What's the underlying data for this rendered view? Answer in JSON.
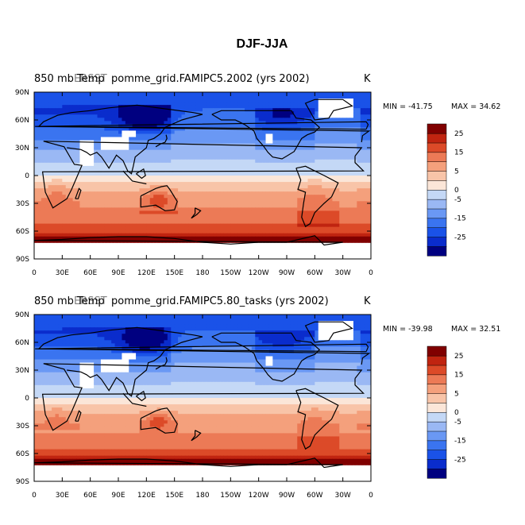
{
  "figure_title": "DJF-JJA",
  "chart_data": [
    {
      "type": "heatmap",
      "title_left": "850 mb Temp",
      "title_left_overlay": "ERSST",
      "title_center": "pomme_grid.FAMIPC5.2002 (yrs 2002)",
      "units": "K",
      "min_label": "MIN = -41.75",
      "max_label": "MAX =  34.62",
      "min": -41.75,
      "max": 34.62,
      "x_ticks": [
        "0",
        "30E",
        "60E",
        "90E",
        "120E",
        "150E",
        "180",
        "150W",
        "120W",
        "90W",
        "60W",
        "30W",
        "0"
      ],
      "y_ticks": [
        "90N",
        "60N",
        "30N",
        "0",
        "30S",
        "60S",
        "90S"
      ],
      "colorbar_levels": [
        -30,
        -25,
        -20,
        -15,
        -10,
        -5,
        0,
        2,
        5,
        10,
        15,
        20,
        25,
        30
      ],
      "colorbar_labels": [
        "25",
        "15",
        "5",
        "0",
        "-5",
        "-15",
        "-25"
      ]
    },
    {
      "type": "heatmap",
      "title_left": "850 mb Temp",
      "title_left_overlay": "ERSST",
      "title_center": "pomme_grid.FAMIPC5.80_tasks (yrs 2002)",
      "units": "K",
      "min_label": "MIN = -39.98",
      "max_label": "MAX =  32.51",
      "min": -39.98,
      "max": 32.51,
      "x_ticks": [
        "0",
        "30E",
        "60E",
        "90E",
        "120E",
        "150E",
        "180",
        "150W",
        "120W",
        "90W",
        "60W",
        "30W",
        "0"
      ],
      "y_ticks": [
        "90N",
        "60N",
        "30N",
        "0",
        "30S",
        "60S",
        "90S"
      ],
      "colorbar_levels": [
        -30,
        -25,
        -20,
        -15,
        -10,
        -5,
        0,
        2,
        5,
        10,
        15,
        20,
        25,
        30
      ],
      "colorbar_labels": [
        "25",
        "15",
        "5",
        "0",
        "-5",
        "-15",
        "-25"
      ]
    }
  ],
  "colors": {
    "scale": [
      "#000080",
      "#0a2ccc",
      "#1a52e8",
      "#3a74f0",
      "#6a98f4",
      "#9ab8f4",
      "#c4d8f6",
      "#fbe6d8",
      "#f8c4a8",
      "#f4a07c",
      "#ec7a56",
      "#dc4a28",
      "#c02410",
      "#800000"
    ],
    "missing": "#ffffff",
    "coast": "#000000"
  }
}
